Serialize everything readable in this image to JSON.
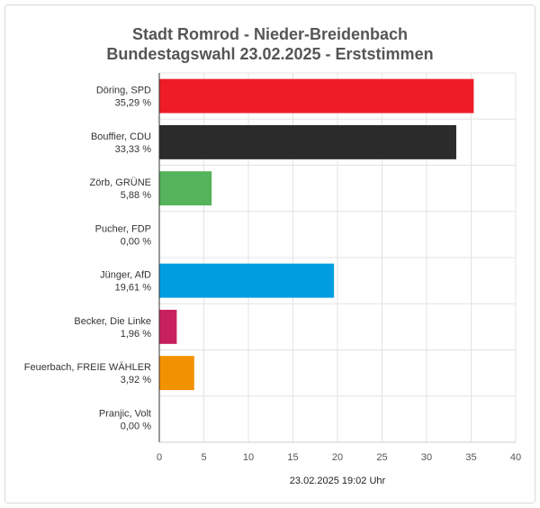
{
  "chart_data": {
    "type": "bar",
    "orientation": "horizontal",
    "title": "Stadt Romrod - Nieder-Breidenbach",
    "subtitle": "Bundestagswahl 23.02.2025  - Erststimmen",
    "categories": [
      {
        "name": "Döring, SPD",
        "pct": "35,29 %"
      },
      {
        "name": "Bouffier, CDU",
        "pct": "33,33 %"
      },
      {
        "name": "Zörb, GRÜNE",
        "pct": "5,88 %"
      },
      {
        "name": "Pucher, FDP",
        "pct": "0,00 %"
      },
      {
        "name": "Jünger, AfD",
        "pct": "19,61 %"
      },
      {
        "name": "Becker, Die Linke",
        "pct": "1,96 %"
      },
      {
        "name": "Feuerbach, FREIE WÄHLER",
        "pct": "3,92 %"
      },
      {
        "name": "Pranjic, Volt",
        "pct": "0,00 %"
      }
    ],
    "values": [
      35.29,
      33.33,
      5.88,
      0.0,
      19.61,
      1.96,
      3.92,
      0.0
    ],
    "colors": [
      "#ee1c27",
      "#2b2b2b",
      "#55b35b",
      "#ffd500",
      "#009ee0",
      "#c8205e",
      "#f39200",
      "#562883"
    ],
    "xlim": [
      0,
      40
    ],
    "xticks": [
      0,
      5,
      10,
      15,
      20,
      25,
      30,
      35,
      40
    ],
    "grid": true,
    "footer": "23.02.2025 19:02 Uhr"
  }
}
